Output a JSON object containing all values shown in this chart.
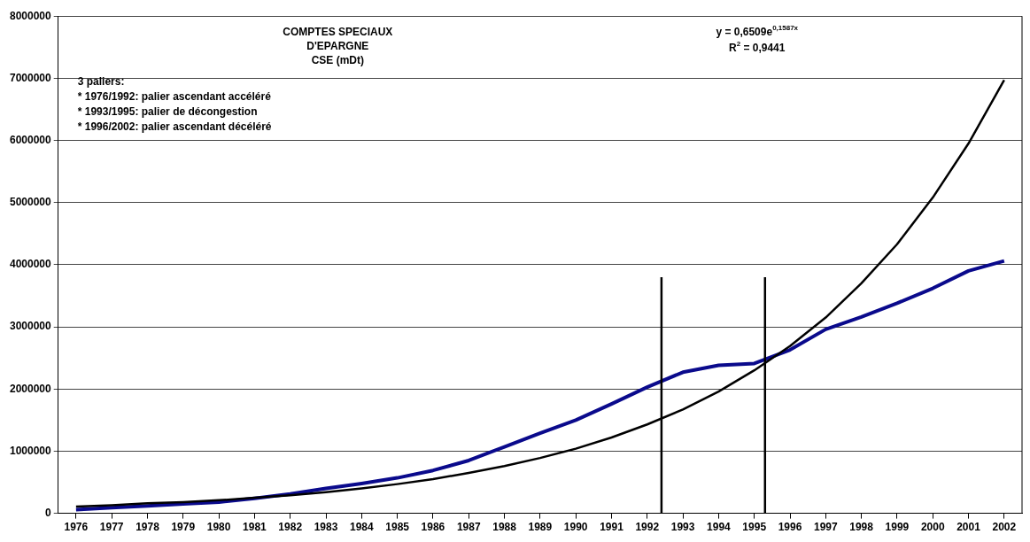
{
  "chart_data": {
    "type": "line",
    "title": "COMPTES SPECIAUX\nD'EPARGNE\nCSE (mDt)",
    "x": [
      1976,
      1977,
      1978,
      1979,
      1980,
      1981,
      1982,
      1983,
      1984,
      1985,
      1986,
      1987,
      1988,
      1989,
      1990,
      1991,
      1992,
      1993,
      1994,
      1995,
      1996,
      1997,
      1998,
      1999,
      2000,
      2001,
      2002
    ],
    "xlim": [
      1975.5,
      2002.5
    ],
    "xticks": [
      1976,
      1977,
      1978,
      1979,
      1980,
      1981,
      1982,
      1983,
      1984,
      1985,
      1986,
      1987,
      1988,
      1989,
      1990,
      1991,
      1992,
      1993,
      1994,
      1995,
      1996,
      1997,
      1998,
      1999,
      2000,
      2001,
      2002
    ],
    "ylim": [
      0,
      8000000
    ],
    "yticks": [
      0,
      1000000,
      2000000,
      3000000,
      4000000,
      5000000,
      6000000,
      7000000,
      8000000
    ],
    "series": [
      {
        "color": "#0a0a8c",
        "values": [
          60000,
          90000,
          120000,
          150000,
          180000,
          240000,
          310000,
          400000,
          480000,
          570000,
          690000,
          850000,
          1070000,
          1290000,
          1500000,
          1760000,
          2030000,
          2270000,
          2380000,
          2410000,
          2630000,
          2960000,
          3160000,
          3380000,
          3620000,
          3900000,
          4060000
        ]
      },
      {
        "type": "line",
        "color": "#000000",
        "values": [
          110000,
          130000,
          160000,
          180000,
          210000,
          250000,
          290000,
          340000,
          400000,
          470000,
          550000,
          650000,
          760000,
          890000,
          1040000,
          1220000,
          1430000,
          1670000,
          1960000,
          2300000,
          2690000,
          3150000,
          3700000,
          4330000,
          5080000,
          5950000,
          6970000
        ]
      }
    ],
    "ref_lines": [
      {
        "axis": "x",
        "value": 1992.4,
        "color": "#000000"
      },
      {
        "axis": "x",
        "value": 1995.3,
        "color": "#000000"
      }
    ],
    "annotations": [
      "3 paliers:\n* 1976/1992: palier ascendant accéléré\n* 1993/1995: palier de décongestion\n* 1996/2002: palier ascendant décéléré",
      "y = 0,6509e$^{0,1587x}$\nR$^{2}$ = 0,9441"
    ],
    "grid": "y",
    "legend": false,
    "marker": "none"
  }
}
